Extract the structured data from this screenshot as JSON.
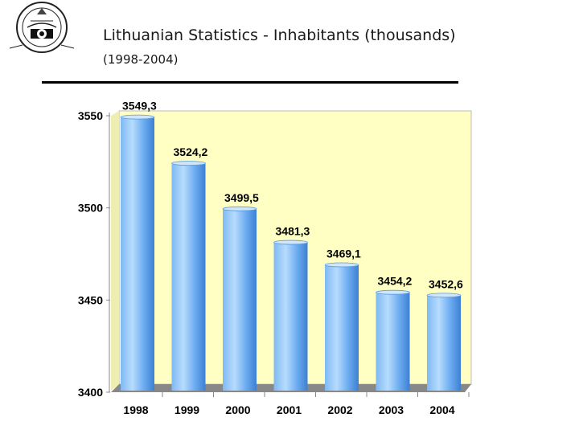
{
  "header": {
    "title": "Lithuanian Statistics - Inhabitants (thousands)",
    "subtitle": "(1998-2004)",
    "logo_icon": "lithuanian-statistics-seal-icon"
  },
  "colors": {
    "plot_background": "#ffffc4",
    "bar_light": "#a9d4fb",
    "bar_mid": "#5ba3ee",
    "bar_dark": "#2f72c8",
    "floor": "#888888"
  },
  "chart_data": {
    "type": "bar",
    "categories": [
      "1998",
      "1999",
      "2000",
      "2001",
      "2002",
      "2003",
      "2004"
    ],
    "values": [
      3549.3,
      3524.2,
      3499.5,
      3481.3,
      3469.1,
      3454.2,
      3452.6
    ],
    "value_labels": [
      "3549,3",
      "3524,2",
      "3499,5",
      "3481,3",
      "3469,1",
      "3454,2",
      "3452,6"
    ],
    "yticks": [
      3400,
      3450,
      3500,
      3550
    ],
    "ylim": [
      3400,
      3550
    ],
    "xlabel": "",
    "ylabel": "",
    "grid": false,
    "legend": "none"
  }
}
